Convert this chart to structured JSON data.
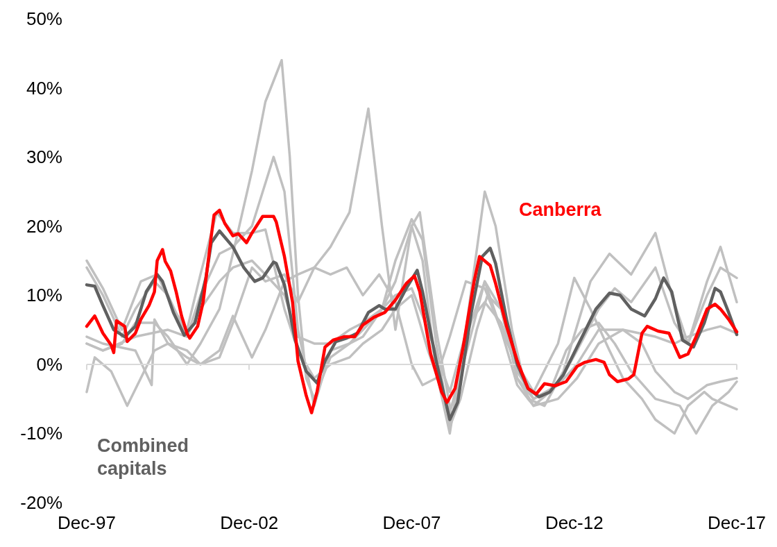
{
  "chart_data": {
    "type": "line",
    "xlim": [
      "1997-12",
      "2017-12"
    ],
    "xticks": [
      {
        "value": "1997-12",
        "label": "Dec-97"
      },
      {
        "value": "2002-12",
        "label": "Dec-02"
      },
      {
        "value": "2007-12",
        "label": "Dec-07"
      },
      {
        "value": "2012-12",
        "label": "Dec-12"
      },
      {
        "value": "2017-12",
        "label": "Dec-17"
      }
    ],
    "ylim": [
      -20,
      50
    ],
    "yticks": [
      {
        "value": -20,
        "label": "-20%"
      },
      {
        "value": -10,
        "label": "-10%"
      },
      {
        "value": 0,
        "label": "0%"
      },
      {
        "value": 10,
        "label": "10%"
      },
      {
        "value": 20,
        "label": "20%"
      },
      {
        "value": 30,
        "label": "30%"
      },
      {
        "value": 40,
        "label": "40%"
      },
      {
        "value": 50,
        "label": "50%"
      }
    ],
    "grid": false,
    "marker": "none",
    "line_style": "solid",
    "ref_lines": [
      {
        "axis": "y",
        "value": 0,
        "color": "#d9d9d9"
      }
    ],
    "series": [
      {
        "color": "#c0c0c0",
        "x": [
          "1997-12",
          "1998-03",
          "1998-09",
          "1999-03",
          "1999-08",
          "2000-01",
          "2000-06",
          "2001-01",
          "2001-06",
          "2002-01",
          "2002-06",
          "2003-01",
          "2003-06",
          "2004-01",
          "2004-06",
          "2004-12",
          "2005-06",
          "2006-01",
          "2006-08",
          "2007-01",
          "2007-06",
          "2007-12",
          "2008-03",
          "2008-09",
          "2009-03",
          "2009-09",
          "2010-03",
          "2010-09",
          "2011-03",
          "2011-09",
          "2012-03",
          "2012-09",
          "2013-03",
          "2013-09",
          "2014-03",
          "2014-09",
          "2015-06",
          "2016-03",
          "2016-09",
          "2017-03",
          "2017-09",
          "2017-12"
        ],
        "values": [
          -4,
          1,
          -1,
          -6,
          -2,
          2,
          3,
          1,
          0,
          2,
          7,
          1,
          5,
          12,
          13,
          14,
          17,
          22,
          37,
          20,
          5,
          20,
          22,
          5,
          -8,
          5,
          12,
          5,
          -3,
          -6,
          -4,
          2,
          5,
          6,
          3,
          -1,
          -5,
          -6,
          -10,
          -6,
          -4,
          -2.5
        ]
      },
      {
        "color": "#c0c0c0",
        "x": [
          "1997-12",
          "1998-06",
          "1999-01",
          "1999-06",
          "2000-01",
          "2000-06",
          "2001-01",
          "2001-06",
          "2002-01",
          "2002-06",
          "2003-01",
          "2003-06",
          "2003-12",
          "2004-03",
          "2004-06",
          "2004-09",
          "2004-12",
          "2005-06",
          "2006-01",
          "2006-06",
          "2007-01",
          "2007-06",
          "2007-12",
          "2008-04",
          "2008-09",
          "2009-02",
          "2009-06",
          "2009-12",
          "2010-04",
          "2010-09",
          "2011-03",
          "2011-09",
          "2012-06",
          "2013-01",
          "2013-09",
          "2014-06",
          "2015-01",
          "2015-06",
          "2016-01",
          "2016-06",
          "2017-01",
          "2017-06",
          "2017-12"
        ],
        "values": [
          3,
          2,
          3,
          6,
          6,
          4,
          0,
          3,
          8,
          16,
          28,
          38,
          44,
          30,
          10,
          -2,
          -5,
          1,
          3,
          5,
          8,
          15,
          21,
          18,
          3,
          -9,
          -5,
          5,
          10,
          8,
          -2,
          -6,
          -5,
          -2,
          3,
          5,
          3,
          -1,
          -4,
          -5,
          -3,
          -2.5,
          -2
        ]
      },
      {
        "color": "#c0c0c0",
        "x": [
          "1997-12",
          "1998-06",
          "1999-01",
          "1999-06",
          "2000-01",
          "2000-06",
          "2001-01",
          "2001-06",
          "2002-01",
          "2002-06",
          "2003-01",
          "2003-09",
          "2004-01",
          "2004-06",
          "2004-12",
          "2005-06",
          "2006-01",
          "2006-06",
          "2007-01",
          "2007-06",
          "2007-12",
          "2008-04",
          "2008-09",
          "2009-02",
          "2009-08",
          "2010-03",
          "2010-07",
          "2011-01",
          "2011-07",
          "2012-01",
          "2012-08",
          "2013-06",
          "2014-01",
          "2014-09",
          "2015-06",
          "2015-12",
          "2016-06",
          "2017-01",
          "2017-06",
          "2017-12"
        ],
        "values": [
          14,
          10,
          4,
          8,
          12,
          10,
          4,
          10,
          16,
          17,
          20,
          30,
          25,
          5,
          -6,
          2,
          3,
          4,
          8,
          12,
          20,
          15,
          -1,
          -10,
          5,
          25,
          20,
          5,
          -5,
          -6,
          -1,
          12,
          16,
          13,
          19,
          10,
          3,
          12,
          17,
          9
        ]
      },
      {
        "color": "#c0c0c0",
        "x": [
          "1997-12",
          "1998-06",
          "1999-01",
          "1999-08",
          "2000-02",
          "2000-08",
          "2001-01",
          "2001-06",
          "2001-12",
          "2002-06",
          "2003-01",
          "2003-06",
          "2004-01",
          "2004-06",
          "2004-12",
          "2005-06",
          "2006-01",
          "2006-06",
          "2007-01",
          "2007-06",
          "2007-12",
          "2008-06",
          "2009-02",
          "2009-09",
          "2010-03",
          "2010-09",
          "2011-03",
          "2011-09",
          "2012-06",
          "2013-01",
          "2013-09",
          "2014-03",
          "2014-09",
          "2015-06",
          "2016-01",
          "2016-06",
          "2017-01",
          "2017-06",
          "2017-12"
        ],
        "values": [
          15,
          11,
          5,
          12,
          13,
          8,
          5,
          13,
          22,
          19,
          19,
          19.5,
          8,
          2,
          -2,
          0,
          1,
          3,
          5,
          8,
          10,
          2,
          -7,
          3,
          12,
          8,
          -2,
          -5,
          -3,
          2,
          8,
          11,
          9,
          14,
          6,
          3,
          10,
          14,
          12.5
        ]
      },
      {
        "color": "#c0c0c0",
        "x": [
          "1997-12",
          "1998-06",
          "1999-06",
          "1999-12",
          "2000-01",
          "2000-06",
          "2001-01",
          "2001-06",
          "2002-01",
          "2002-06",
          "2003-01",
          "2003-06",
          "2004-01",
          "2004-06",
          "2004-12",
          "2005-06",
          "2005-12",
          "2006-06",
          "2006-12",
          "2007-06",
          "2007-12",
          "2008-04",
          "2008-09",
          "2009-02",
          "2009-08",
          "2010-03",
          "2010-09",
          "2011-03",
          "2011-09",
          "2012-06",
          "2012-12",
          "2013-06",
          "2014-01",
          "2014-06",
          "2015-01",
          "2015-06",
          "2016-01",
          "2016-06",
          "2016-12",
          "2017-03",
          "2017-12"
        ],
        "values": [
          4,
          3,
          2,
          -3,
          6.5,
          3,
          2,
          0,
          1,
          6,
          14,
          12,
          13,
          9,
          14,
          13,
          14,
          10,
          13,
          9,
          0,
          -3,
          -2,
          4,
          12,
          11,
          5,
          0,
          -4,
          3,
          12.5,
          8,
          2,
          -2,
          -5,
          -8,
          -10,
          -6,
          -4,
          -5,
          -6.5
        ]
      },
      {
        "color": "#c0c0c0",
        "x": [
          "1997-12",
          "1998-06",
          "1999-06",
          "2000-06",
          "2001-01",
          "2001-06",
          "2002-01",
          "2002-06",
          "2003-01",
          "2003-06",
          "2004-01",
          "2004-06",
          "2004-12",
          "2005-06",
          "2006-01",
          "2006-06",
          "2007-01",
          "2007-06",
          "2007-12",
          "2008-06",
          "2009-02",
          "2009-09",
          "2010-03",
          "2010-09",
          "2011-03",
          "2011-09",
          "2012-06",
          "2013-01",
          "2013-09",
          "2014-06",
          "2015-06",
          "2016-01",
          "2016-06",
          "2017-01",
          "2017-06",
          "2017-12"
        ],
        "values": [
          3,
          2,
          4,
          5,
          4,
          8,
          12,
          14,
          15,
          13,
          10,
          4,
          3,
          3,
          5,
          6,
          8,
          10,
          11,
          5,
          -4,
          6,
          9,
          6,
          -1,
          -5,
          -3,
          0,
          5,
          5,
          4,
          3,
          4,
          5,
          5.5,
          4.5
        ]
      },
      {
        "name": "Combined capitals",
        "color": "#606060",
        "x": [
          "1997-12",
          "1998-03",
          "1998-06",
          "1998-10",
          "1999-02",
          "1999-06",
          "1999-10",
          "2000-02",
          "2000-04",
          "2000-08",
          "2000-12",
          "2001-04",
          "2001-08",
          "2001-10",
          "2002-01",
          "2002-06",
          "2002-10",
          "2003-02",
          "2003-05",
          "2003-09",
          "2003-10",
          "2004-01",
          "2004-05",
          "2004-09",
          "2005-01",
          "2005-04",
          "2005-08",
          "2005-12",
          "2006-04",
          "2006-08",
          "2006-12",
          "2007-02",
          "2007-06",
          "2007-10",
          "2008-02",
          "2008-04",
          "2008-09",
          "2009-02",
          "2009-05",
          "2009-10",
          "2010-02",
          "2010-05",
          "2010-07",
          "2010-11",
          "2011-03",
          "2011-07",
          "2011-11",
          "2012-03",
          "2012-08",
          "2013-01",
          "2013-08",
          "2014-01",
          "2014-05",
          "2014-09",
          "2015-02",
          "2015-06",
          "2015-09",
          "2015-12",
          "2016-04",
          "2016-08",
          "2016-12",
          "2017-04",
          "2017-06",
          "2017-09",
          "2017-12"
        ],
        "values": [
          11.5,
          11.3,
          8.5,
          5,
          4,
          5.5,
          10.5,
          13,
          12,
          7.5,
          4.2,
          6,
          12.5,
          17.6,
          19.3,
          17,
          14,
          12,
          12.5,
          14.8,
          14.6,
          11.5,
          3.5,
          -1,
          -2.7,
          0.5,
          3.3,
          3.8,
          4.5,
          7.5,
          8.5,
          8,
          8,
          11,
          13.6,
          10.5,
          0.5,
          -8,
          -5.5,
          7.5,
          15.6,
          16.8,
          14.6,
          6.5,
          0,
          -3.5,
          -4.7,
          -4,
          -1.5,
          2.5,
          8,
          10.3,
          10,
          8,
          7,
          9.5,
          12.5,
          10.5,
          3.5,
          2.5,
          6,
          11,
          10.5,
          7.5,
          4.3
        ]
      },
      {
        "name": "Canberra",
        "color": "#ff0000",
        "x": [
          "1997-12",
          "1998-03",
          "1998-06",
          "1998-09",
          "1998-10",
          "1998-11",
          "1999-02",
          "1999-03",
          "1999-06",
          "1999-08",
          "1999-11",
          "2000-01",
          "2000-02",
          "2000-04",
          "2000-05",
          "2000-07",
          "2000-09",
          "2000-11",
          "2001-01",
          "2001-02",
          "2001-05",
          "2001-07",
          "2001-10",
          "2001-11",
          "2002-01",
          "2002-03",
          "2002-06",
          "2002-08",
          "2002-11",
          "2003-01",
          "2003-05",
          "2003-09",
          "2003-10",
          "2004-01",
          "2004-04",
          "2004-06",
          "2004-09",
          "2004-11",
          "2005-01",
          "2005-04",
          "2005-07",
          "2005-11",
          "2006-03",
          "2006-06",
          "2006-10",
          "2007-02",
          "2007-06",
          "2007-10",
          "2008-01",
          "2008-03",
          "2008-07",
          "2008-11",
          "2009-01",
          "2009-04",
          "2009-07",
          "2009-11",
          "2010-01",
          "2010-05",
          "2010-07",
          "2010-11",
          "2011-03",
          "2011-07",
          "2011-10",
          "2012-01",
          "2012-05",
          "2012-09",
          "2013-01",
          "2013-04",
          "2013-08",
          "2013-11",
          "2014-01",
          "2014-04",
          "2014-08",
          "2014-10",
          "2015-01",
          "2015-03",
          "2015-07",
          "2015-11",
          "2016-03",
          "2016-06",
          "2016-09",
          "2017-01",
          "2017-04",
          "2017-06",
          "2017-09",
          "2017-12"
        ],
        "values": [
          5.5,
          7,
          4.5,
          2.8,
          1.7,
          6.3,
          5.5,
          3.3,
          4.5,
          6.5,
          8.5,
          10.5,
          15,
          16.6,
          14.9,
          13.5,
          10.5,
          7,
          4.5,
          3.8,
          5.5,
          9,
          18.6,
          21.6,
          22.3,
          20.4,
          18.6,
          18.9,
          17.6,
          19,
          21.4,
          21.4,
          20.6,
          15.6,
          9,
          0.5,
          -4.5,
          -7,
          -4,
          2.5,
          3.5,
          4,
          4,
          5.7,
          6.8,
          7.5,
          9.3,
          11.7,
          12.8,
          10.5,
          1.5,
          -4,
          -5.5,
          -3.5,
          2.5,
          12,
          15.6,
          14.3,
          11.7,
          5.5,
          0.5,
          -3.5,
          -4.3,
          -2.8,
          -3.1,
          -2.5,
          -0.3,
          0.3,
          0.7,
          0.3,
          -1.5,
          -2.5,
          -2.1,
          -1.5,
          4.5,
          5.5,
          4.8,
          4.5,
          1,
          1.5,
          4,
          8,
          8.7,
          8,
          6.5,
          4.7
        ]
      }
    ]
  }
}
